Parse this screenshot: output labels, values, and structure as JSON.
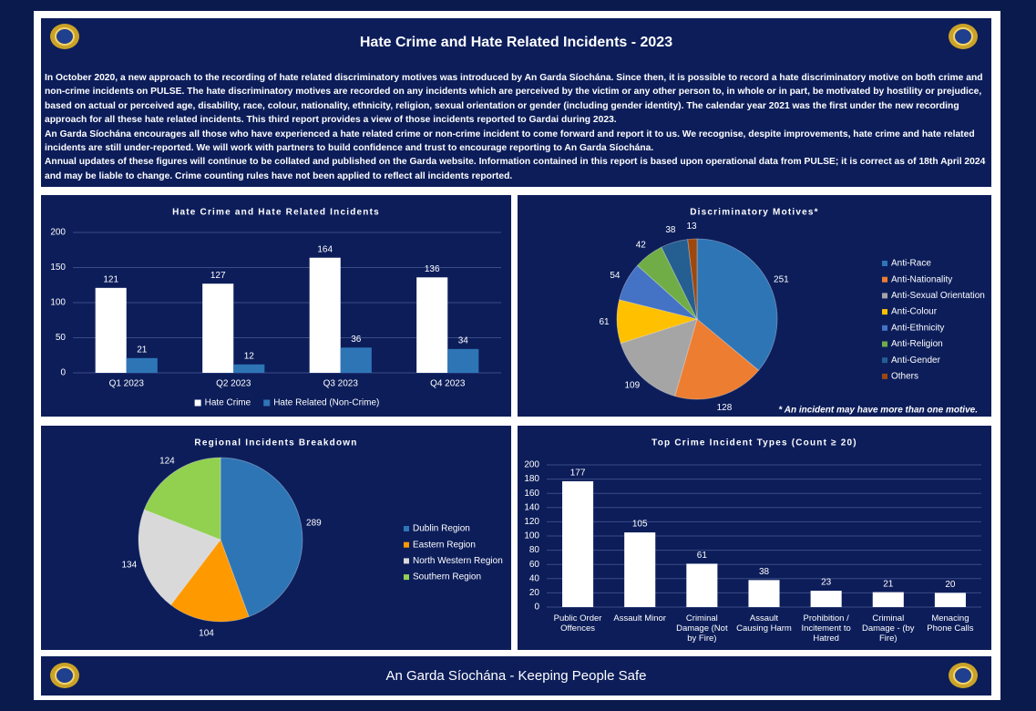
{
  "header": {
    "title": "Hate Crime and Hate Related Incidents - 2023",
    "paragraphs": [
      "In October 2020, a new approach to the recording of hate related discriminatory motives was introduced by An Garda Síochána.  Since then, it is possible to record a hate discriminatory motive on both crime and non-crime incidents on PULSE.  The hate discriminatory motives are recorded on any incidents which are perceived by the victim or any other person to, in whole or in part, be motivated by hostility or prejudice, based on actual or perceived age, disability, race, colour, nationality, ethnicity, religion, sexual orientation or gender (including gender identity).  The calendar year 2021 was the first under the new recording approach for all these hate related incidents.  This third report provides a view of those incidents reported to Gardai during 2023.",
      "An Garda Síochána encourages all those who have experienced a hate related crime or non-crime incident to come forward and report it to us.  We recognise, despite improvements, hate crime and hate related incidents are still under-reported.  We will work with partners to build confidence and trust to encourage reporting to An Garda Síochána.",
      "Annual updates of these figures will continue to be collated and published on the Garda website.  Information contained in this report is based upon operational data from PULSE; it is correct as of 18th April 2024 and may be liable to change.  Crime counting rules have not been applied to reflect all incidents reported."
    ]
  },
  "chart_data": [
    {
      "type": "bar",
      "title": "Hate Crime and Hate Related Incidents",
      "categories": [
        "Q1 2023",
        "Q2 2023",
        "Q3 2023",
        "Q4 2023"
      ],
      "series": [
        {
          "name": "Hate Crime",
          "color": "#ffffff",
          "values": [
            121,
            127,
            164,
            136
          ]
        },
        {
          "name": "Hate Related (Non-Crime)",
          "color": "#2e75b6",
          "values": [
            21,
            12,
            36,
            34
          ]
        }
      ],
      "ylim": [
        0,
        200
      ],
      "yticks": [
        0,
        50,
        100,
        150,
        200
      ],
      "grid": true,
      "legend": "bottom",
      "data_labels": true
    },
    {
      "type": "pie",
      "title": "Discriminatory Motives*",
      "categories": [
        "Anti-Race",
        "Anti-Nationality",
        "Anti-Sexual Orientation",
        "Anti-Colour",
        "Anti-Ethnicity",
        "Anti-Religion",
        "Anti-Gender",
        "Others"
      ],
      "values": [
        251,
        128,
        109,
        61,
        54,
        42,
        38,
        13
      ],
      "colors": [
        "#2e75b6",
        "#ed7d31",
        "#a5a5a5",
        "#ffc000",
        "#4472c4",
        "#70ad47",
        "#255e91",
        "#9e480e"
      ],
      "legend": "right",
      "data_labels": true,
      "note": "* An incident may have more than one motive."
    },
    {
      "type": "pie",
      "title": "Regional Incidents Breakdown",
      "categories": [
        "Dublin Region",
        "Eastern Region",
        "North Western Region",
        "Southern Region"
      ],
      "values": [
        289,
        104,
        134,
        124
      ],
      "colors": [
        "#2e75b6",
        "#ff9900",
        "#d9d9d9",
        "#92d050"
      ],
      "legend": "right",
      "data_labels": true
    },
    {
      "type": "bar",
      "title": "Top Crime Incident Types (Count ≥ 20)",
      "categories": [
        "Public Order Offences",
        "Assault Minor",
        "Criminal Damage (Not by Fire)",
        "Assault Causing Harm",
        "Prohibition / Incitement to Hatred",
        "Criminal Damage - (by Fire)",
        "Menacing Phone Calls"
      ],
      "values": [
        177,
        105,
        61,
        38,
        23,
        21,
        20
      ],
      "color": "#ffffff",
      "ylim": [
        0,
        200
      ],
      "yticks": [
        0,
        20,
        40,
        60,
        80,
        100,
        120,
        140,
        160,
        180,
        200
      ],
      "grid": true,
      "data_labels": true
    }
  ],
  "footer": {
    "text": "An Garda Síochána - Keeping People Safe"
  }
}
